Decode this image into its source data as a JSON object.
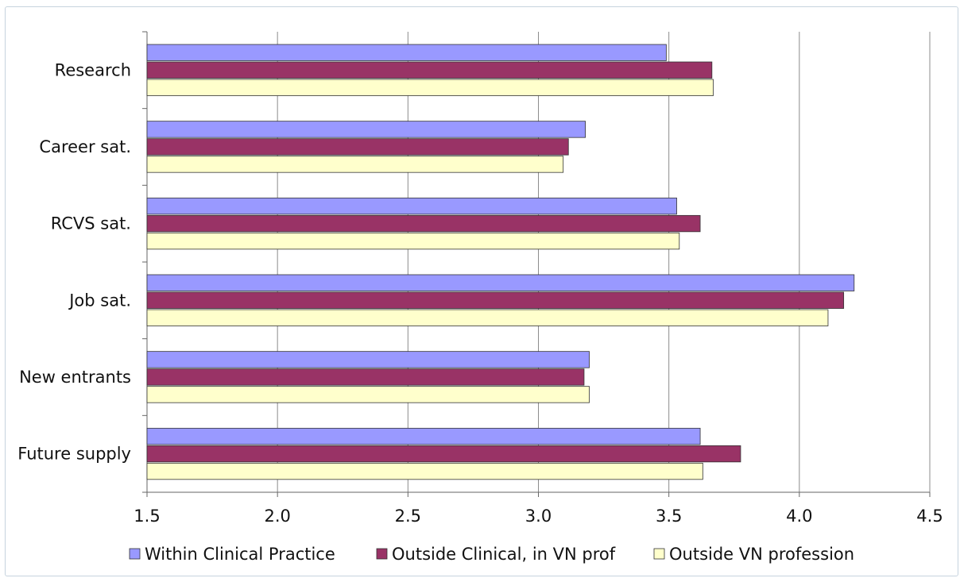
{
  "chart_data": {
    "type": "bar",
    "orientation": "horizontal",
    "categories": [
      "Research",
      "Career sat.",
      "RCVS sat.",
      "Job sat.",
      "New entrants",
      "Future supply"
    ],
    "series": [
      {
        "name": "Within Clinical Practice",
        "color": "#9999ff",
        "values": [
          3.49,
          3.18,
          3.53,
          4.21,
          3.195,
          3.62
        ]
      },
      {
        "name": "Outside Clinical, in VN prof",
        "color": "#993366",
        "values": [
          3.665,
          3.115,
          3.62,
          4.17,
          3.175,
          3.775
        ]
      },
      {
        "name": "Outside VN profession",
        "color": "#ffffcc",
        "values": [
          3.67,
          3.095,
          3.54,
          4.11,
          3.195,
          3.63
        ]
      }
    ],
    "xlim": [
      1.5,
      4.5
    ],
    "xticks": [
      "1.5",
      "2.0",
      "2.5",
      "3.0",
      "3.5",
      "4.0",
      "4.5"
    ],
    "title": "",
    "xlabel": "",
    "ylabel": "",
    "grid": "vertical",
    "legend": "bottom"
  }
}
